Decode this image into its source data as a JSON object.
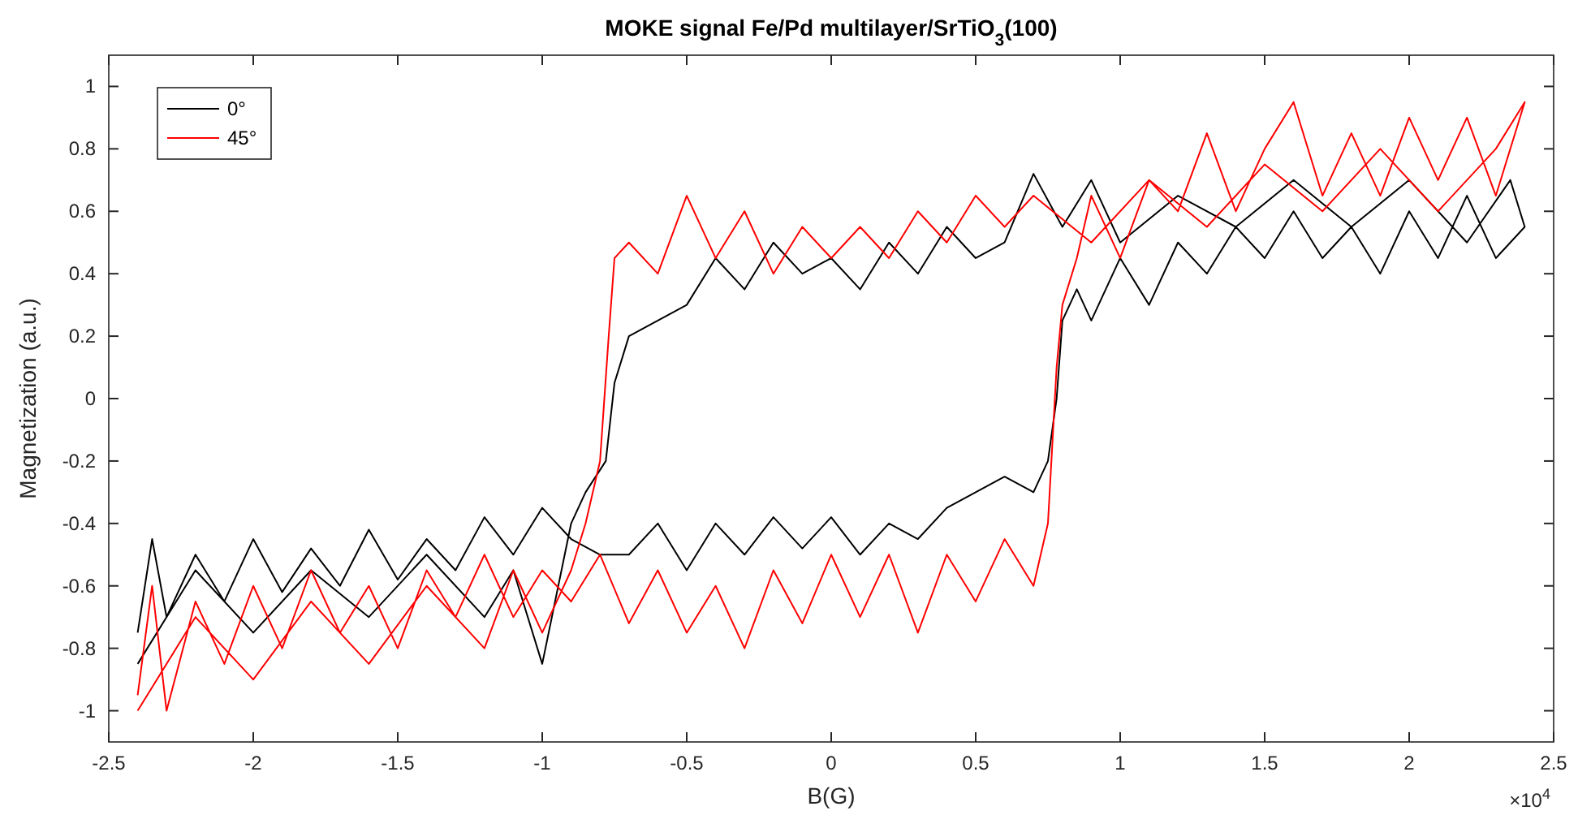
{
  "chart_data": {
    "type": "line",
    "title": "MOKE signal Fe/Pd multilayer/SrTiO$_{3}$(100)",
    "xlabel": "B(G)",
    "ylabel": "Magnetization (a.u.)",
    "annotations": [
      "×10$^{4}$"
    ],
    "xlim": [
      -2.5,
      2.5
    ],
    "xticks": [
      -2.5,
      -2,
      -1.5,
      -1,
      -0.5,
      0,
      0.5,
      1,
      1.5,
      2,
      2.5
    ],
    "ylim": [
      -1.1,
      1.1
    ],
    "yticks": [
      -1,
      -0.8,
      -0.6,
      -0.4,
      -0.2,
      0,
      0.2,
      0.4,
      0.6,
      0.8,
      1
    ],
    "grid": false,
    "legend": "top left",
    "line_style": "solid",
    "marker": "none",
    "series": [
      {
        "name": "0°",
        "color": "#000000",
        "x": [
          -2.4,
          -2.35,
          -2.3,
          -2.2,
          -2.1,
          -2.0,
          -1.9,
          -1.8,
          -1.7,
          -1.6,
          -1.5,
          -1.4,
          -1.3,
          -1.2,
          -1.1,
          -1.0,
          -0.9,
          -0.8,
          -0.7,
          -0.6,
          -0.5,
          -0.4,
          -0.3,
          -0.2,
          -0.1,
          0,
          0.1,
          0.2,
          0.3,
          0.4,
          0.5,
          0.6,
          0.7,
          0.75,
          0.78,
          0.8,
          0.85,
          0.9,
          1.0,
          1.1,
          1.2,
          1.3,
          1.4,
          1.5,
          1.6,
          1.7,
          1.8,
          1.9,
          2.0,
          2.1,
          2.2,
          2.3,
          2.4,
          2.35,
          2.2,
          2.0,
          1.8,
          1.6,
          1.4,
          1.2,
          1.0,
          0.9,
          0.8,
          0.7,
          0.6,
          0.5,
          0.4,
          0.3,
          0.2,
          0.1,
          0,
          -0.1,
          -0.2,
          -0.3,
          -0.4,
          -0.5,
          -0.6,
          -0.7,
          -0.75,
          -0.78,
          -0.85,
          -0.9,
          -1.0,
          -1.1,
          -1.2,
          -1.4,
          -1.6,
          -1.8,
          -2.0,
          -2.2,
          -2.4
        ],
        "values": [
          -0.75,
          -0.45,
          -0.7,
          -0.5,
          -0.65,
          -0.45,
          -0.62,
          -0.48,
          -0.6,
          -0.42,
          -0.58,
          -0.45,
          -0.55,
          -0.38,
          -0.5,
          -0.35,
          -0.45,
          -0.5,
          -0.5,
          -0.4,
          -0.55,
          -0.4,
          -0.5,
          -0.38,
          -0.48,
          -0.38,
          -0.5,
          -0.4,
          -0.45,
          -0.35,
          -0.3,
          -0.25,
          -0.3,
          -0.2,
          0.0,
          0.25,
          0.35,
          0.25,
          0.45,
          0.3,
          0.5,
          0.4,
          0.55,
          0.45,
          0.6,
          0.45,
          0.55,
          0.4,
          0.6,
          0.45,
          0.65,
          0.45,
          0.55,
          0.7,
          0.5,
          0.7,
          0.55,
          0.7,
          0.55,
          0.65,
          0.5,
          0.7,
          0.55,
          0.72,
          0.5,
          0.45,
          0.55,
          0.4,
          0.5,
          0.35,
          0.45,
          0.4,
          0.5,
          0.35,
          0.45,
          0.3,
          0.25,
          0.2,
          0.05,
          -0.2,
          -0.3,
          -0.4,
          -0.85,
          -0.55,
          -0.7,
          -0.5,
          -0.7,
          -0.55,
          -0.75,
          -0.55,
          -0.85
        ]
      },
      {
        "name": "45°",
        "color": "#ff0000",
        "x": [
          -2.4,
          -2.35,
          -2.3,
          -2.2,
          -2.1,
          -2.0,
          -1.9,
          -1.8,
          -1.7,
          -1.6,
          -1.5,
          -1.4,
          -1.3,
          -1.2,
          -1.1,
          -1.0,
          -0.9,
          -0.8,
          -0.7,
          -0.6,
          -0.5,
          -0.4,
          -0.3,
          -0.2,
          -0.1,
          0,
          0.1,
          0.2,
          0.3,
          0.4,
          0.5,
          0.6,
          0.7,
          0.75,
          0.78,
          0.8,
          0.85,
          0.9,
          1.0,
          1.1,
          1.2,
          1.3,
          1.4,
          1.5,
          1.6,
          1.7,
          1.8,
          1.9,
          2.0,
          2.1,
          2.2,
          2.3,
          2.4,
          2.3,
          2.1,
          1.9,
          1.7,
          1.5,
          1.3,
          1.1,
          0.9,
          0.7,
          0.6,
          0.5,
          0.4,
          0.3,
          0.2,
          0.1,
          0,
          -0.1,
          -0.2,
          -0.3,
          -0.4,
          -0.5,
          -0.6,
          -0.7,
          -0.75,
          -0.77,
          -0.8,
          -0.85,
          -0.9,
          -1.0,
          -1.1,
          -1.2,
          -1.4,
          -1.6,
          -1.8,
          -2.0,
          -2.2,
          -2.4
        ],
        "values": [
          -0.95,
          -0.6,
          -1.0,
          -0.65,
          -0.85,
          -0.6,
          -0.8,
          -0.55,
          -0.75,
          -0.6,
          -0.8,
          -0.55,
          -0.7,
          -0.5,
          -0.7,
          -0.55,
          -0.65,
          -0.5,
          -0.72,
          -0.55,
          -0.75,
          -0.6,
          -0.8,
          -0.55,
          -0.72,
          -0.5,
          -0.7,
          -0.5,
          -0.75,
          -0.5,
          -0.65,
          -0.45,
          -0.6,
          -0.4,
          0.1,
          0.3,
          0.45,
          0.65,
          0.45,
          0.7,
          0.6,
          0.85,
          0.6,
          0.8,
          0.95,
          0.65,
          0.85,
          0.65,
          0.9,
          0.7,
          0.9,
          0.65,
          0.95,
          0.8,
          0.6,
          0.8,
          0.6,
          0.75,
          0.55,
          0.7,
          0.5,
          0.65,
          0.55,
          0.65,
          0.5,
          0.6,
          0.45,
          0.55,
          0.45,
          0.55,
          0.4,
          0.6,
          0.45,
          0.65,
          0.4,
          0.5,
          0.45,
          0.2,
          -0.2,
          -0.4,
          -0.55,
          -0.75,
          -0.55,
          -0.8,
          -0.6,
          -0.85,
          -0.65,
          -0.9,
          -0.7,
          -1.0
        ]
      }
    ]
  }
}
